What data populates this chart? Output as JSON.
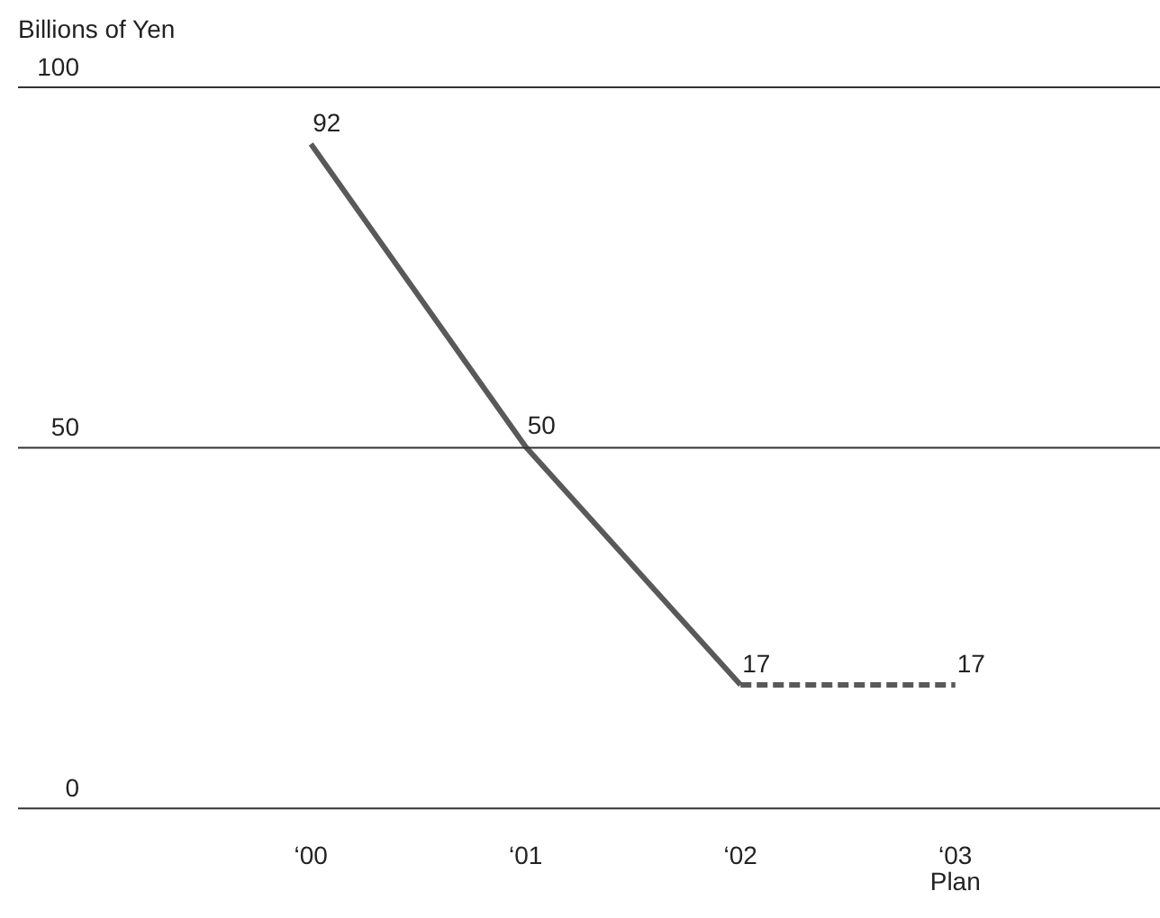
{
  "chart_data": {
    "type": "line",
    "ylabel": "Billions of Yen",
    "categories": [
      "‘00",
      "‘01",
      "‘02",
      "‘03\nPlan"
    ],
    "series": [
      {
        "color": "#595959",
        "values": [
          92,
          50,
          17,
          null
        ],
        "line_style": "solid",
        "value_labels": [
          "92",
          "50",
          "17",
          null
        ]
      },
      {
        "color": "#595959",
        "values": [
          null,
          null,
          17,
          17
        ],
        "line_style": "dashed",
        "value_labels": [
          null,
          null,
          null,
          "17"
        ]
      }
    ],
    "ylim": [
      0,
      100
    ],
    "yticks": [
      0,
      50,
      100
    ],
    "grid": "y",
    "legend": false,
    "marker": "none"
  }
}
